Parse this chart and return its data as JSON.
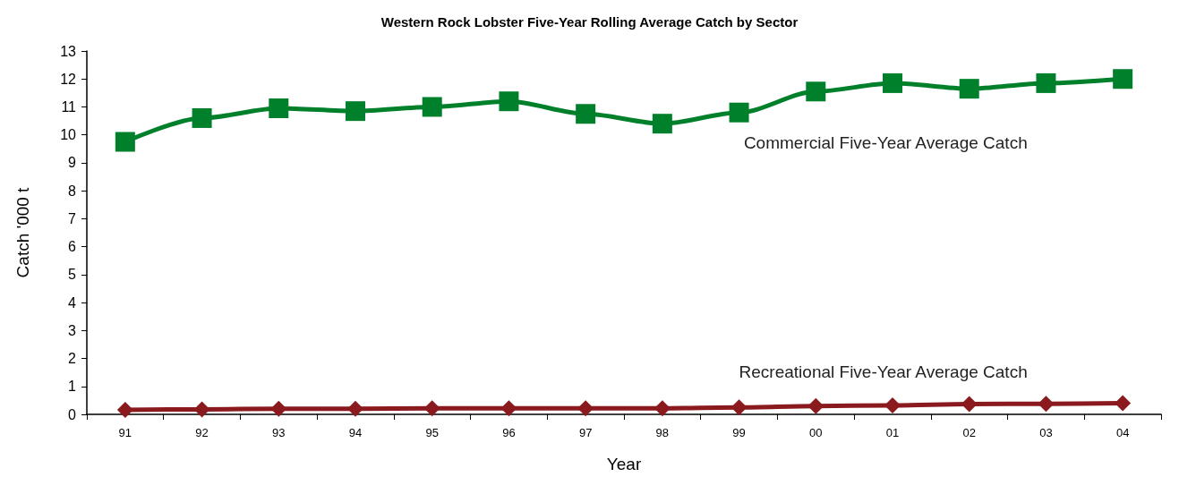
{
  "chart_data": {
    "type": "line",
    "title": "Western Rock Lobster Five-Year Rolling Average Catch by Sector",
    "xlabel": "Year",
    "ylabel": "Catch '000 t",
    "categories": [
      "91",
      "92",
      "93",
      "94",
      "95",
      "96",
      "97",
      "98",
      "99",
      "00",
      "01",
      "02",
      "03",
      "04"
    ],
    "series": [
      {
        "name": "Commercial Five-Year Average Catch",
        "color": "#00802b",
        "marker": "square",
        "values": [
          9.75,
          10.6,
          10.95,
          10.85,
          11.0,
          11.2,
          10.75,
          10.4,
          10.8,
          11.55,
          11.85,
          11.65,
          11.85,
          12.0
        ]
      },
      {
        "name": "Recreational Five-Year Average Catch",
        "color": "#8b1a1f",
        "marker": "diamond",
        "values": [
          0.16,
          0.18,
          0.2,
          0.2,
          0.22,
          0.22,
          0.22,
          0.22,
          0.25,
          0.3,
          0.32,
          0.37,
          0.38,
          0.4
        ]
      }
    ],
    "ylim": [
      0,
      13
    ],
    "yticks": [
      0,
      1,
      2,
      3,
      4,
      5,
      6,
      7,
      8,
      9,
      10,
      11,
      12,
      13
    ],
    "grid": false,
    "legend": false,
    "line_style": "solid"
  }
}
